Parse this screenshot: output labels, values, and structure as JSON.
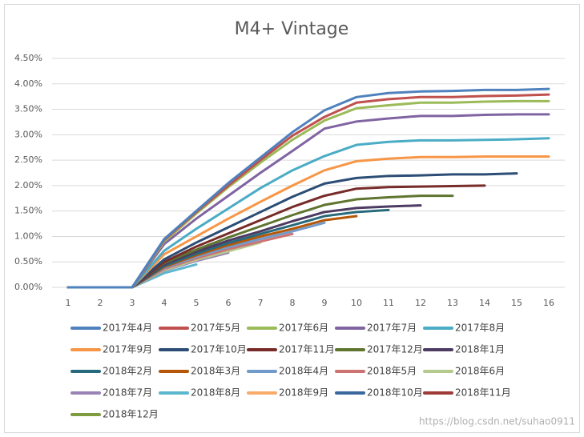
{
  "chart_data": {
    "type": "line",
    "title": "M4+ Vintage",
    "categories": [
      "1",
      "2",
      "3",
      "4",
      "5",
      "6",
      "7",
      "8",
      "9",
      "10",
      "11",
      "12",
      "13",
      "14",
      "15",
      "16"
    ],
    "ylim": [
      0,
      4.5
    ],
    "yticks": [
      {
        "value": 0,
        "label": "0.00%"
      },
      {
        "value": 0.5,
        "label": "0.50%"
      },
      {
        "value": 1,
        "label": "1.00%"
      },
      {
        "value": 1.5,
        "label": "1.50%"
      },
      {
        "value": 2,
        "label": "2.00%"
      },
      {
        "value": 2.5,
        "label": "2.50%"
      },
      {
        "value": 3,
        "label": "3.00%"
      },
      {
        "value": 3.5,
        "label": "3.50%"
      },
      {
        "value": 4,
        "label": "4.00%"
      },
      {
        "value": 4.5,
        "label": "4.50%"
      }
    ],
    "grid": true,
    "legend": "bottom",
    "annotation": "https://blog.csdn.net/suhao0911",
    "series": [
      {
        "name": "2017年4月",
        "color": "#4f81bd",
        "values": [
          0,
          0,
          0,
          0.95,
          1.5,
          2.05,
          2.55,
          3.05,
          3.48,
          3.74,
          3.82,
          3.85,
          3.86,
          3.88,
          3.88,
          3.9
        ]
      },
      {
        "name": "2017年5月",
        "color": "#c0504d",
        "values": [
          0,
          0,
          0,
          0.93,
          1.48,
          2.0,
          2.5,
          2.98,
          3.35,
          3.63,
          3.7,
          3.74,
          3.74,
          3.76,
          3.77,
          3.79
        ]
      },
      {
        "name": "2017年6月",
        "color": "#9bbb59",
        "values": [
          0,
          0,
          0,
          0.9,
          1.45,
          1.97,
          2.45,
          2.9,
          3.28,
          3.52,
          3.58,
          3.63,
          3.63,
          3.65,
          3.66,
          3.66
        ]
      },
      {
        "name": "2017年7月",
        "color": "#8064a2",
        "values": [
          0,
          0,
          0,
          0.85,
          1.35,
          1.8,
          2.25,
          2.68,
          3.12,
          3.26,
          3.32,
          3.37,
          3.37,
          3.39,
          3.4,
          3.4
        ]
      },
      {
        "name": "2017年8月",
        "color": "#4bacc6",
        "values": [
          0,
          0,
          0,
          0.72,
          1.15,
          1.55,
          1.95,
          2.3,
          2.58,
          2.8,
          2.86,
          2.89,
          2.89,
          2.9,
          2.91,
          2.93
        ]
      },
      {
        "name": "2017年9月",
        "color": "#f79646",
        "values": [
          0,
          0,
          0,
          0.65,
          1.0,
          1.35,
          1.68,
          2.0,
          2.3,
          2.48,
          2.53,
          2.56,
          2.56,
          2.57,
          2.57,
          2.57
        ]
      },
      {
        "name": "2017年10月",
        "color": "#2c4d75",
        "values": [
          0,
          0,
          0,
          0.55,
          0.88,
          1.18,
          1.48,
          1.78,
          2.04,
          2.15,
          2.19,
          2.2,
          2.22,
          2.22,
          2.24,
          null
        ]
      },
      {
        "name": "2017年11月",
        "color": "#772c2a",
        "values": [
          0,
          0,
          0,
          0.5,
          0.8,
          1.06,
          1.32,
          1.58,
          1.8,
          1.94,
          1.97,
          1.98,
          1.99,
          2.0,
          null,
          null
        ]
      },
      {
        "name": "2017年12月",
        "color": "#5f7530",
        "values": [
          0,
          0,
          0,
          0.48,
          0.74,
          0.98,
          1.2,
          1.42,
          1.62,
          1.73,
          1.77,
          1.8,
          1.8,
          null,
          null,
          null
        ]
      },
      {
        "name": "2018年1月",
        "color": "#4d3b62",
        "values": [
          0,
          0,
          0,
          0.45,
          0.7,
          0.92,
          1.1,
          1.3,
          1.48,
          1.56,
          1.59,
          1.61,
          null,
          null,
          null,
          null
        ]
      },
      {
        "name": "2018年2月",
        "color": "#276a7c",
        "values": [
          0,
          0,
          0,
          0.42,
          0.66,
          0.87,
          1.05,
          1.22,
          1.4,
          1.48,
          1.52,
          null,
          null,
          null,
          null,
          null
        ]
      },
      {
        "name": "2018年3月",
        "color": "#b65708",
        "values": [
          0,
          0,
          0,
          0.4,
          0.63,
          0.83,
          1.0,
          1.15,
          1.32,
          1.4,
          null,
          null,
          null,
          null,
          null,
          null
        ]
      },
      {
        "name": "2018年4月",
        "color": "#729aca",
        "values": [
          0,
          0,
          0,
          0.38,
          0.6,
          0.79,
          0.95,
          1.1,
          1.27,
          null,
          null,
          null,
          null,
          null,
          null,
          null
        ]
      },
      {
        "name": "2018年5月",
        "color": "#cd7371",
        "values": [
          0,
          0,
          0,
          0.36,
          0.57,
          0.75,
          0.9,
          1.05,
          null,
          null,
          null,
          null,
          null,
          null,
          null,
          null
        ]
      },
      {
        "name": "2018年6月",
        "color": "#b5ca8d",
        "values": [
          0,
          0,
          0,
          0.34,
          0.54,
          0.71,
          0.88,
          null,
          null,
          null,
          null,
          null,
          null,
          null,
          null,
          null
        ]
      },
      {
        "name": "2018年7月",
        "color": "#9983b5",
        "values": [
          0,
          0,
          0,
          0.33,
          0.52,
          0.68,
          null,
          null,
          null,
          null,
          null,
          null,
          null,
          null,
          null,
          null
        ]
      },
      {
        "name": "2018年8月",
        "color": "#5bb7cf",
        "values": [
          0,
          0,
          0,
          0.28,
          0.45,
          null,
          null,
          null,
          null,
          null,
          null,
          null,
          null,
          null,
          null,
          null
        ]
      },
      {
        "name": "2018年9月",
        "color": "#f9ab6b",
        "values": [
          0,
          0,
          0,
          0.3,
          null,
          null,
          null,
          null,
          null,
          null,
          null,
          null,
          null,
          null,
          null,
          null
        ]
      },
      {
        "name": "2018年10月",
        "color": "#3a679c",
        "values": [
          0,
          0,
          0,
          null,
          null,
          null,
          null,
          null,
          null,
          null,
          null,
          null,
          null,
          null,
          null,
          null
        ]
      },
      {
        "name": "2018年11月",
        "color": "#9e3b38",
        "values": [
          0,
          0,
          null,
          null,
          null,
          null,
          null,
          null,
          null,
          null,
          null,
          null,
          null,
          null,
          null,
          null
        ]
      },
      {
        "name": "2018年12月",
        "color": "#7e9c40",
        "values": [
          0,
          null,
          null,
          null,
          null,
          null,
          null,
          null,
          null,
          null,
          null,
          null,
          null,
          null,
          null,
          null
        ]
      }
    ]
  }
}
